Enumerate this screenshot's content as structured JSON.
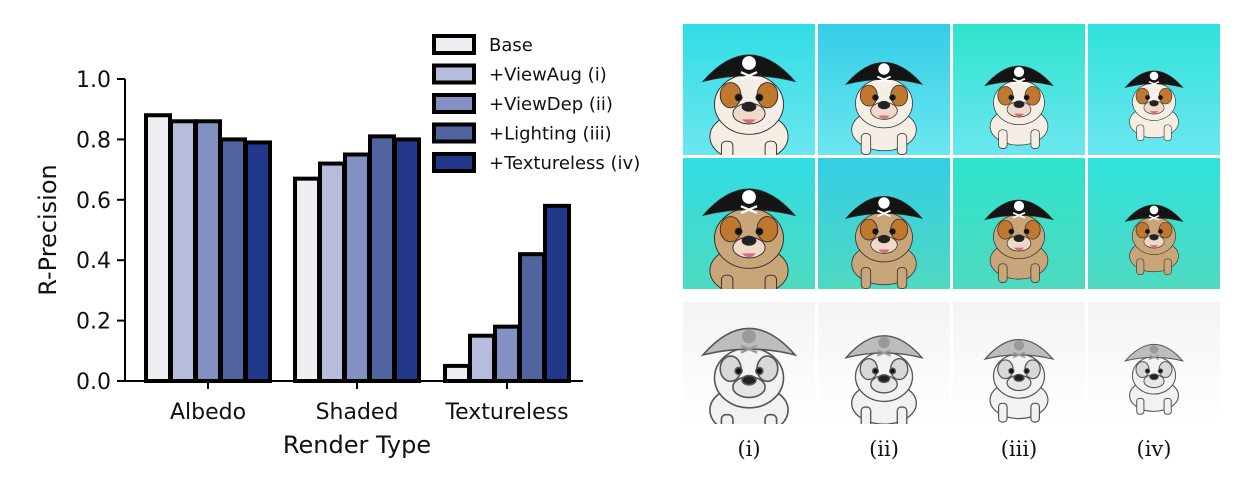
{
  "chart_data": {
    "type": "bar",
    "title": "",
    "xlabel": "Render Type",
    "ylabel": "R-Precision",
    "ylim": [
      0,
      1.0
    ],
    "yticks": [
      "0.0",
      "0.2",
      "0.4",
      "0.6",
      "0.8",
      "1.0"
    ],
    "categories": [
      "Albedo",
      "Shaded",
      "Textureless"
    ],
    "legend_position": "top-right",
    "grid": false,
    "series": [
      {
        "name": "Base",
        "color": "#eeeef3",
        "values": [
          0.88,
          0.67,
          0.05
        ]
      },
      {
        "name": "+ViewAug (i)",
        "color": "#b6bcdc",
        "values": [
          0.86,
          0.72,
          0.15
        ]
      },
      {
        "name": "+ViewDep (ii)",
        "color": "#8390c2",
        "values": [
          0.86,
          0.75,
          0.18
        ]
      },
      {
        "name": "+Lighting (iii)",
        "color": "#51649f",
        "values": [
          0.8,
          0.81,
          0.42
        ]
      },
      {
        "name": "+Textureless (iv)",
        "color": "#22388a",
        "values": [
          0.79,
          0.8,
          0.58
        ]
      }
    ]
  },
  "gallery": {
    "columns": [
      "(i)",
      "(ii)",
      "(iii)",
      "(iv)"
    ],
    "rows": [
      "albedo",
      "shaded",
      "textureless"
    ]
  }
}
